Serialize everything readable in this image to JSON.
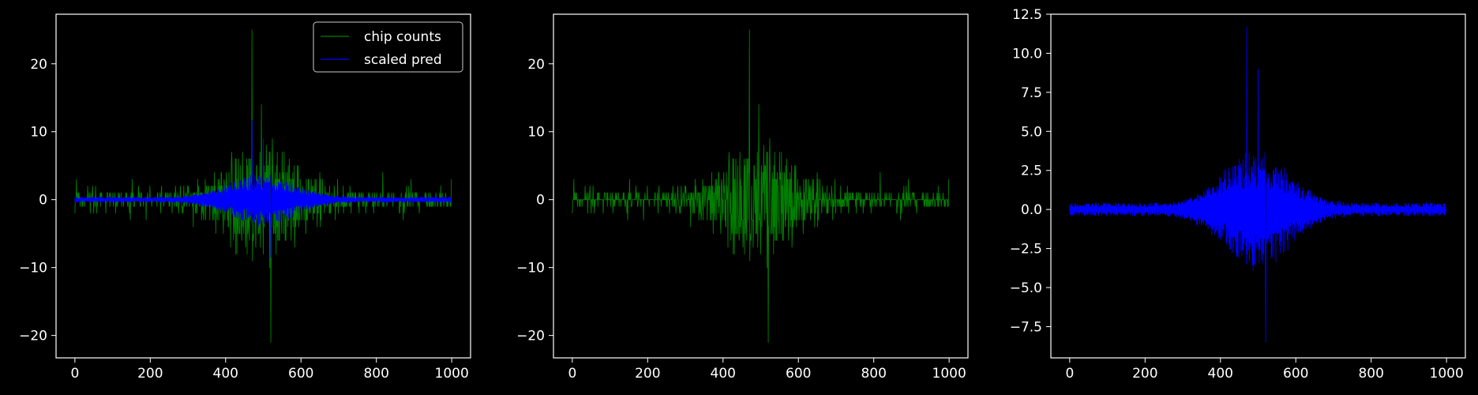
{
  "figure": {
    "background": "#000000",
    "axes_color": "#ffffff",
    "tick_label_color": "#ffffff"
  },
  "chart_data": [
    {
      "type": "line",
      "title": "",
      "xlabel": "",
      "ylabel": "",
      "xlim": [
        -50,
        1050
      ],
      "ylim": [
        -23.3,
        27.3
      ],
      "xticks": [
        0,
        200,
        400,
        600,
        800,
        1000
      ],
      "xtick_labels": [
        "0",
        "200",
        "400",
        "600",
        "800",
        "1000"
      ],
      "yticks": [
        -20,
        -10,
        0,
        10,
        20
      ],
      "ytick_labels": [
        "−20",
        "−10",
        "0",
        "10",
        "20"
      ],
      "grid": false,
      "legend": {
        "position": "top-right",
        "entries": [
          "chip counts",
          "scaled pred"
        ]
      },
      "series": [
        {
          "name": "chip counts",
          "color": "#008000",
          "generator": "counts",
          "n_points": 1000,
          "center": 495,
          "peaks": [
            [
              470,
              25
            ],
            [
              495,
              14
            ],
            [
              520,
              -21
            ]
          ]
        },
        {
          "name": "scaled pred",
          "color": "#0000ff",
          "generator": "pred",
          "n_points": 1000,
          "center": 495,
          "peaks": [
            [
              470,
              11.7
            ],
            [
              500,
              9
            ],
            [
              520,
              -8.5
            ]
          ]
        }
      ]
    },
    {
      "type": "line",
      "title": "",
      "xlabel": "",
      "ylabel": "",
      "xlim": [
        -50,
        1050
      ],
      "ylim": [
        -23.3,
        27.3
      ],
      "xticks": [
        0,
        200,
        400,
        600,
        800,
        1000
      ],
      "xtick_labels": [
        "0",
        "200",
        "400",
        "600",
        "800",
        "1000"
      ],
      "yticks": [
        -20,
        -10,
        0,
        10,
        20
      ],
      "ytick_labels": [
        "−20",
        "−10",
        "0",
        "10",
        "20"
      ],
      "grid": false,
      "series": [
        {
          "color": "#008000",
          "generator": "counts",
          "n_points": 1000,
          "center": 495,
          "peaks": [
            [
              470,
              25
            ],
            [
              495,
              14
            ],
            [
              520,
              -21
            ]
          ]
        }
      ]
    },
    {
      "type": "line",
      "title": "",
      "xlabel": "",
      "ylabel": "",
      "xlim": [
        -50,
        1050
      ],
      "ylim": [
        -9.5,
        12.5
      ],
      "xticks": [
        0,
        200,
        400,
        600,
        800,
        1000
      ],
      "xtick_labels": [
        "0",
        "200",
        "400",
        "600",
        "800",
        "1000"
      ],
      "yticks": [
        -7.5,
        -5.0,
        -2.5,
        0.0,
        2.5,
        5.0,
        7.5,
        10.0,
        12.5
      ],
      "ytick_labels": [
        "−7.5",
        "−5.0",
        "−2.5",
        "0.0",
        "2.5",
        "5.0",
        "7.5",
        "10.0",
        "12.5"
      ],
      "grid": false,
      "series": [
        {
          "color": "#0000ff",
          "generator": "pred",
          "n_points": 1000,
          "center": 495,
          "peaks": [
            [
              470,
              11.7
            ],
            [
              500,
              9
            ],
            [
              520,
              -8.5
            ]
          ]
        }
      ]
    }
  ]
}
